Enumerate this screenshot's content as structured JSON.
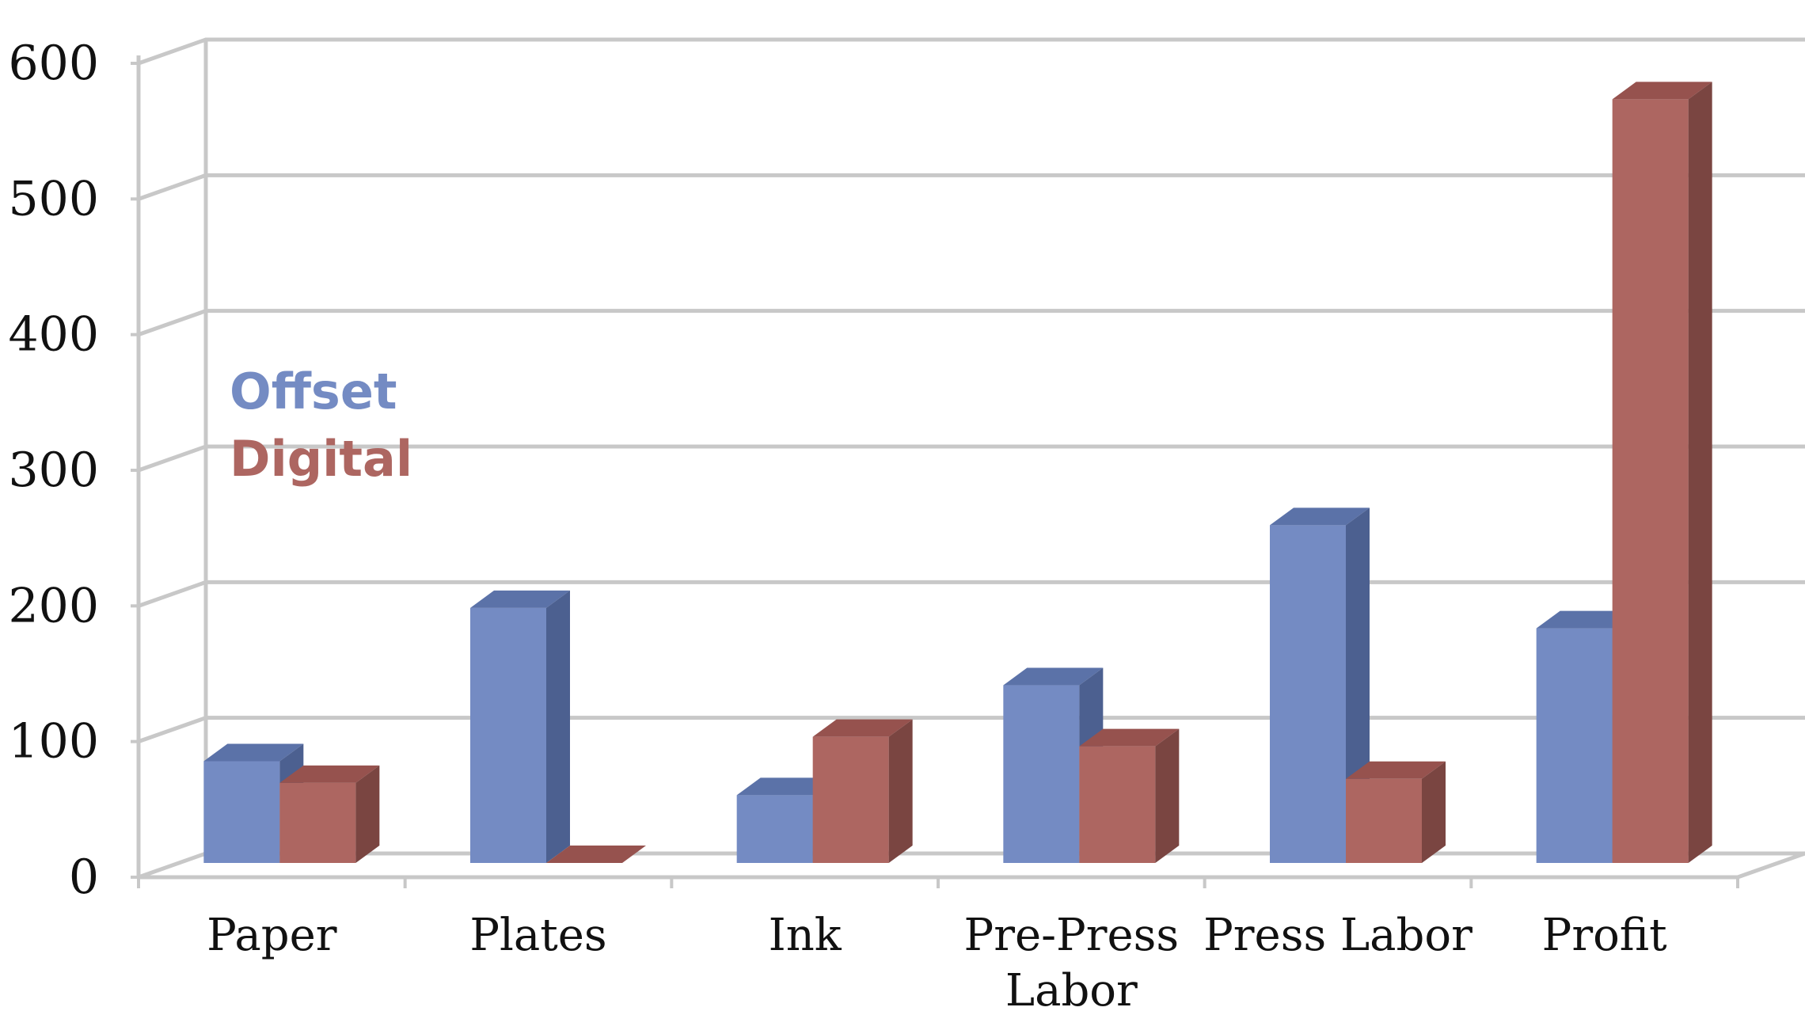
{
  "chart_data": {
    "type": "bar",
    "categories": [
      "Paper",
      "Plates",
      "Ink",
      "Pre-Press Labor",
      "Press Labor",
      "Profit"
    ],
    "series": [
      {
        "name": "Offset",
        "values": [
          75,
          188,
          50,
          131,
          249,
          173
        ]
      },
      {
        "name": "Digital",
        "values": [
          59,
          0,
          93,
          86,
          62,
          563
        ]
      }
    ],
    "ylim": [
      0,
      600
    ],
    "yticks": [
      0,
      100,
      200,
      300,
      400,
      500,
      600
    ],
    "title": "",
    "xlabel": "",
    "ylabel": "",
    "grid": true,
    "legend_placement": "left",
    "colors": {
      "offset_front": "#748bc3",
      "offset_top": "#5b72a8",
      "offset_side": "#4c6090",
      "digital_front": "#ad6661",
      "digital_top": "#96524e",
      "digital_side": "#7a4541",
      "grid": "#c8c8c8"
    }
  },
  "legend": [
    {
      "label": "Offset",
      "color": "#748bc3"
    },
    {
      "label": "Digital",
      "color": "#ad6661"
    }
  ]
}
